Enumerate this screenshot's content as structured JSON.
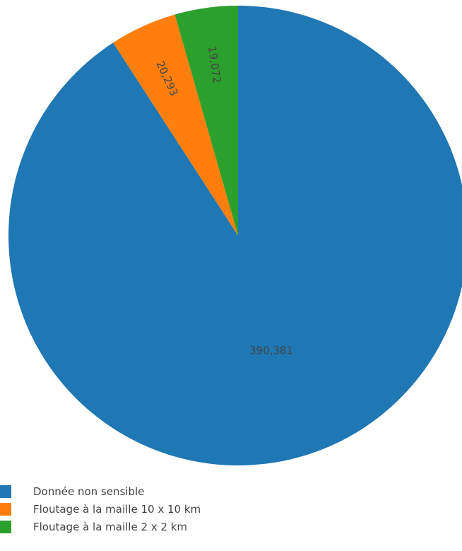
{
  "chart_data": {
    "type": "pie",
    "categories": [
      "Donnée non sensible",
      "Floutage à la maille 10 x 10 km",
      "Floutage à la maille 2 x 2 km"
    ],
    "values": [
      390381,
      20293,
      19072
    ],
    "value_labels": [
      "390,381",
      "20,293",
      "19,072"
    ],
    "colors": [
      "#1f77b4",
      "#ff7f0e",
      "#2ca02c"
    ],
    "direction": "clockwise",
    "legend_position": "bottom-left",
    "label_color": "#444444"
  }
}
